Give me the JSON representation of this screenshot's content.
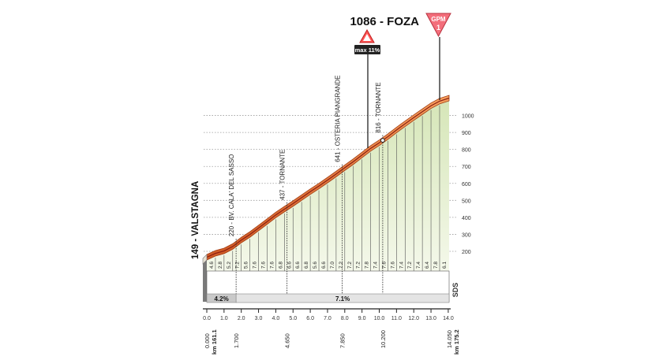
{
  "chart_data": {
    "type": "area",
    "summit": {
      "label": "1086 - FOZA",
      "badge": "GPM",
      "category": "1"
    },
    "max_gradient_label": "max 11%",
    "start_label": "149 - VALSTAGNA",
    "x_unit_label": "km",
    "x_ticks": [
      "0.0",
      "1.0",
      "2.0",
      "3.0",
      "4.0",
      "5.0",
      "6.0",
      "7.0",
      "8.0",
      "9.0",
      "10.0",
      "11.0",
      "12.0",
      "13.0",
      "14.0"
    ],
    "y_ticks": [
      "200",
      "300",
      "400",
      "500",
      "600",
      "700",
      "800",
      "900",
      "1000"
    ],
    "xlim": [
      0,
      14.05
    ],
    "ylim": [
      149,
      1086
    ],
    "elevation": {
      "x": [
        0.0,
        0.5,
        1.0,
        1.5,
        2.0,
        2.5,
        3.0,
        3.5,
        4.0,
        4.5,
        5.0,
        5.5,
        6.0,
        6.5,
        7.0,
        7.5,
        8.0,
        8.5,
        9.0,
        9.5,
        10.0,
        10.5,
        11.0,
        11.5,
        12.0,
        12.5,
        13.0,
        13.5,
        14.05
      ],
      "y": [
        149,
        172,
        186,
        212,
        250,
        283,
        321,
        359,
        398,
        432,
        465,
        500,
        535,
        568,
        603,
        639,
        676,
        712,
        751,
        790,
        823,
        859,
        898,
        935,
        971,
        1006,
        1041,
        1068,
        1086
      ]
    },
    "gradients": [
      "4.6",
      "2.8",
      "5.2",
      "7.2",
      "5.6",
      "7.6",
      "7.6",
      "7.6",
      "6.8",
      "6.6",
      "6.6",
      "6.8",
      "5.6",
      "6.6",
      "7.0",
      "7.2",
      "7.2",
      "7.2",
      "7.8",
      "7.4",
      "7.6",
      "7.6",
      "7.4",
      "7.2",
      "7.4",
      "6.4",
      "7.8",
      "6.1"
    ],
    "points_of_interest": [
      {
        "x": 1.7,
        "label": "220 - BV. CALA' DEL SASSO"
      },
      {
        "x": 4.65,
        "label": "437 - TORNANTE"
      },
      {
        "x": 7.85,
        "label": "641 - OSTERIA PIANGRANDE"
      },
      {
        "x": 10.2,
        "label": "816 - TORNANTE"
      }
    ],
    "avg_gradients": [
      {
        "from": 0.0,
        "to": 1.7,
        "label": "4.2%"
      },
      {
        "from": 1.7,
        "to": 14.05,
        "label": "7.1%"
      }
    ],
    "road_label": "SDS",
    "km_labels": [
      {
        "x": 0.0,
        "distance": "0.000",
        "km": "km 161.1"
      },
      {
        "x": 1.7,
        "distance": "1.700"
      },
      {
        "x": 4.65,
        "distance": "4.650"
      },
      {
        "x": 7.85,
        "distance": "7.850"
      },
      {
        "x": 10.2,
        "distance": "10.200"
      },
      {
        "x": 14.05,
        "distance": "14.050",
        "km": "km 175.2"
      }
    ]
  }
}
